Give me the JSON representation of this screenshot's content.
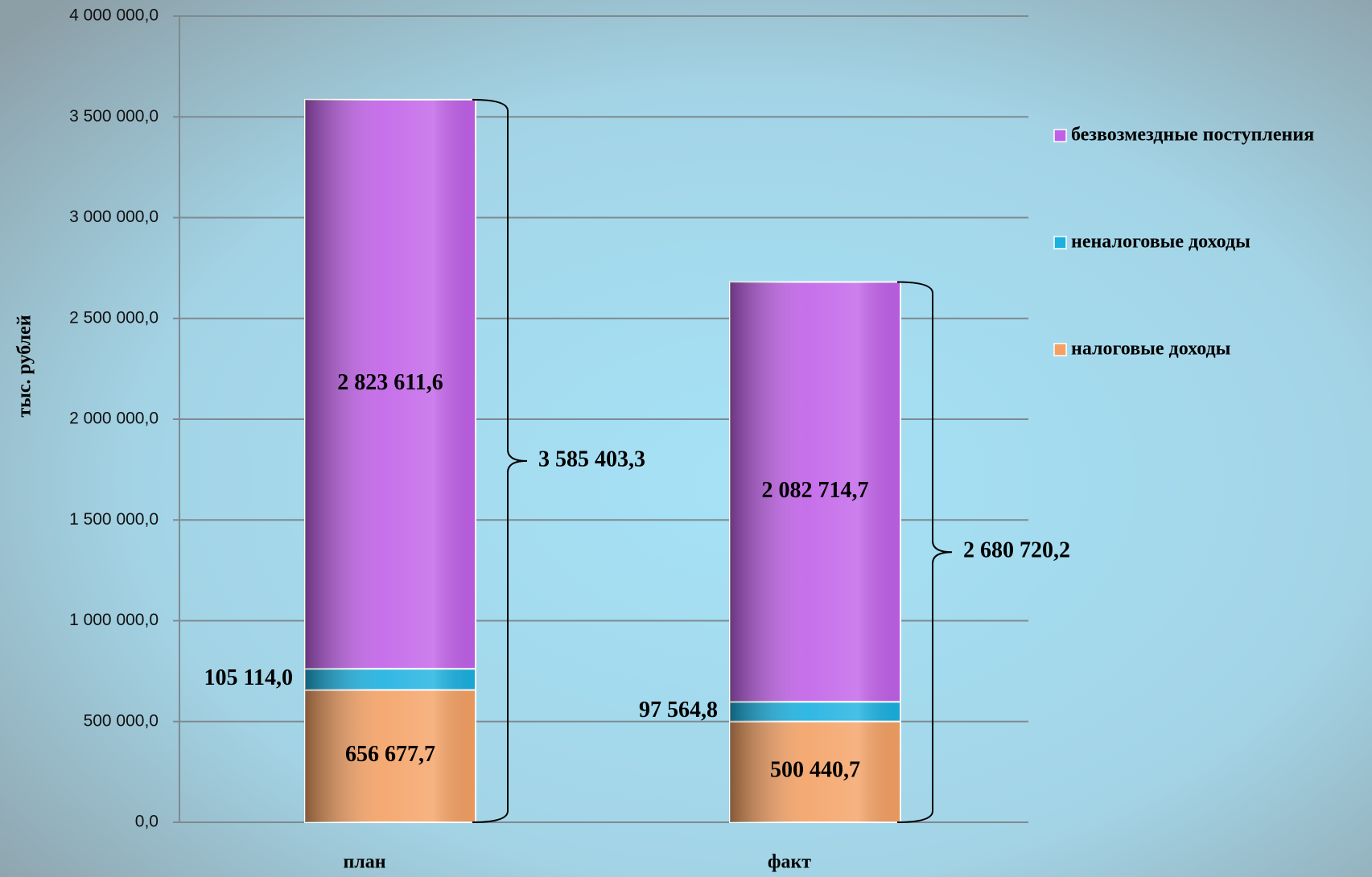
{
  "chart_data": {
    "type": "stacked_bar",
    "y_label": "тыс. рублей",
    "categories": [
      "план",
      "факт"
    ],
    "series": [
      {
        "name": "налоговые доходы",
        "color": "#f4a063",
        "values": [
          656677.7,
          500440.7
        ],
        "value_labels": [
          "656 677,7",
          "500 440,7"
        ]
      },
      {
        "name": "неналоговые доходы",
        "color": "#1ab0e0",
        "values": [
          105114.0,
          97564.8
        ],
        "value_labels": [
          "105 114,0",
          "97 564,8"
        ]
      },
      {
        "name": "безвозмездные поступления",
        "color": "#c060e8",
        "values": [
          2823611.6,
          2082714.7
        ],
        "value_labels": [
          "2 823 611,6",
          "2 082 714,7"
        ]
      }
    ],
    "totals": {
      "values": [
        3585403.3,
        2680720.2
      ],
      "value_labels": [
        "3 585 403,3",
        "2 680 720,2"
      ]
    },
    "ylim": [
      0,
      4000000
    ],
    "yticks": [
      {
        "value": 0,
        "label": "0,0"
      },
      {
        "value": 500000,
        "label": "500 000,0"
      },
      {
        "value": 1000000,
        "label": "1 000 000,0"
      },
      {
        "value": 1500000,
        "label": "1 500 000,0"
      },
      {
        "value": 2000000,
        "label": "2 000 000,0"
      },
      {
        "value": 2500000,
        "label": "2 500 000,0"
      },
      {
        "value": 3000000,
        "label": "3 000 000,0"
      },
      {
        "value": 3500000,
        "label": "3 500 000,0"
      },
      {
        "value": 4000000,
        "label": "4 000 000,0"
      }
    ],
    "grid": true,
    "legend": "right"
  }
}
